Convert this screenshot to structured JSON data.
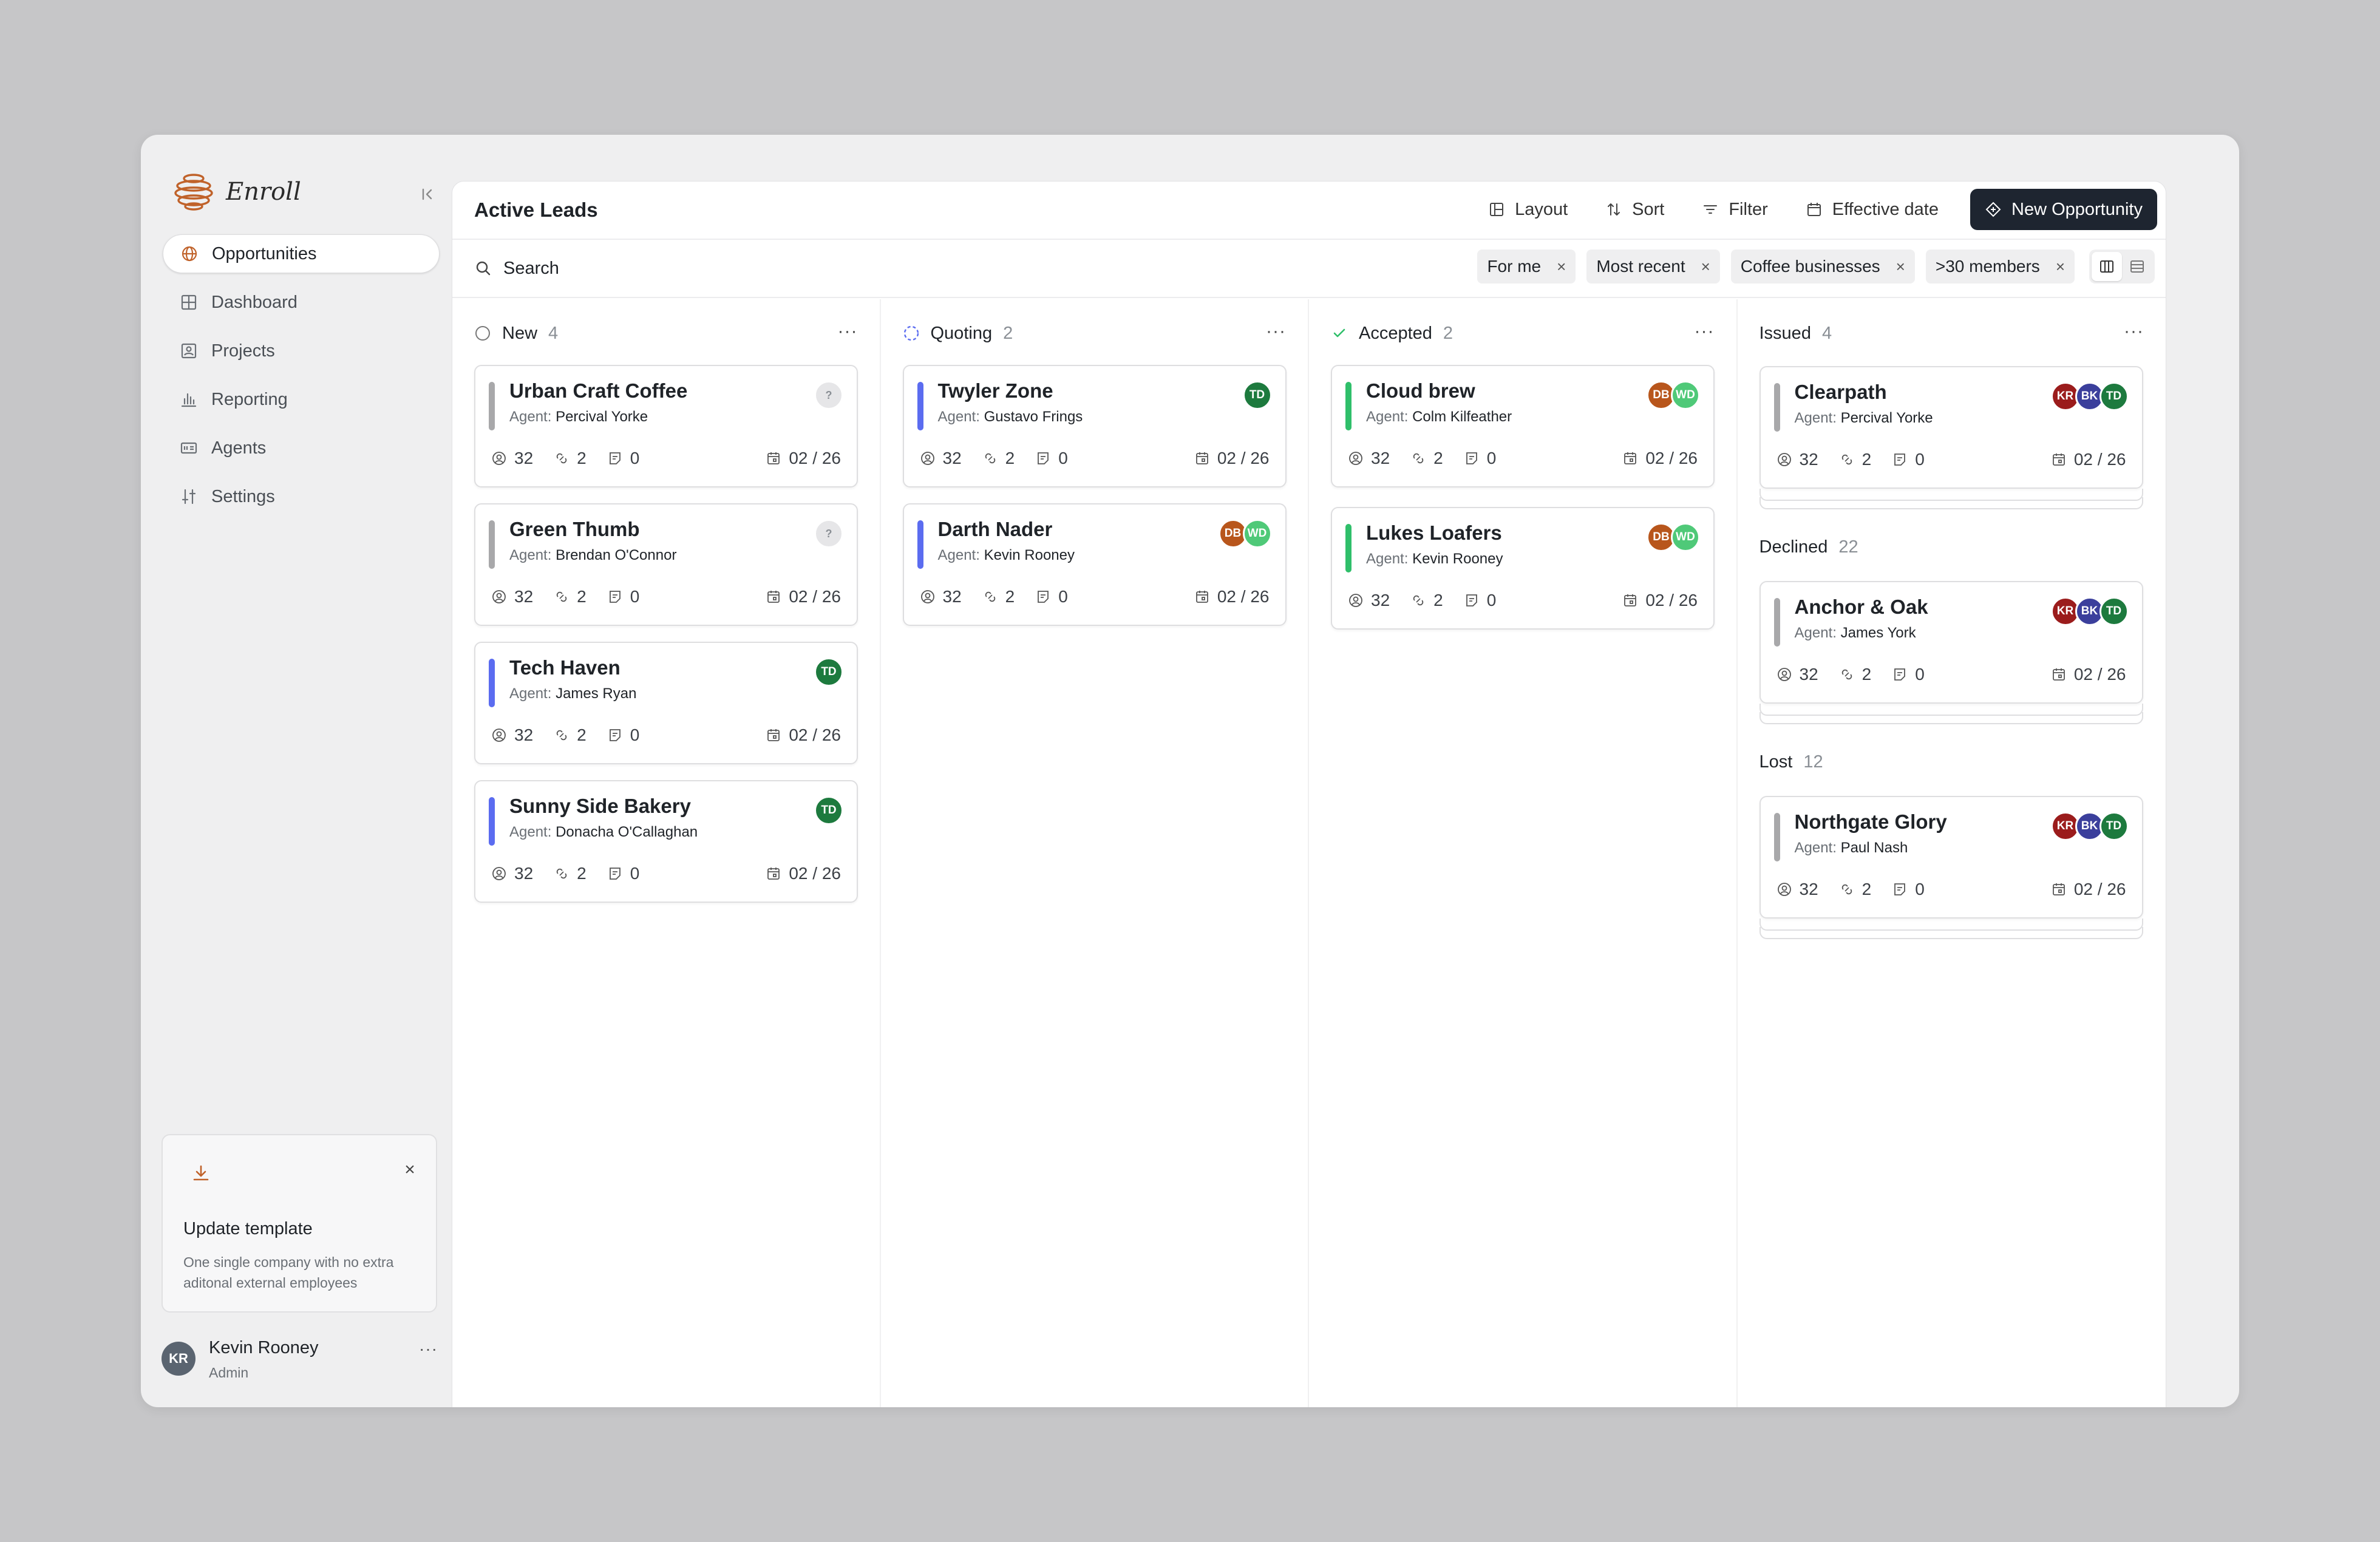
{
  "app": {
    "name": "Enroll"
  },
  "sidebar": {
    "items": [
      {
        "label": "Opportunities",
        "icon": "globe-icon"
      },
      {
        "label": "Dashboard",
        "icon": "grid-icon"
      },
      {
        "label": "Projects",
        "icon": "image-icon"
      },
      {
        "label": "Reporting",
        "icon": "bar-chart-icon"
      },
      {
        "label": "Agents",
        "icon": "id-card-icon"
      },
      {
        "label": "Settings",
        "icon": "sliders-icon"
      }
    ],
    "template": {
      "title": "Update template",
      "description": "One single company with no extra aditonal external employees"
    },
    "user": {
      "initials": "KR",
      "name": "Kevin Rooney",
      "role": "Admin"
    }
  },
  "header": {
    "title": "Active Leads",
    "layout": "Layout",
    "sort": "Sort",
    "filter": "Filter",
    "effective_date": "Effective date",
    "new_opportunity": "New Opportunity"
  },
  "search": {
    "placeholder": "Search"
  },
  "filters": [
    "For me",
    "Most recent",
    "Coffee businesses",
    ">30 members"
  ],
  "colors": {
    "blue": "#5b6cf0",
    "gray": "#a8a8aa",
    "green": "#2fbf6a",
    "dark": "#1e2530"
  },
  "columns": [
    {
      "title": "New",
      "count": "4"
    },
    {
      "title": "Quoting",
      "count": "2"
    },
    {
      "title": "Accepted",
      "count": "2"
    },
    {
      "title": "Issued",
      "count": "4"
    }
  ],
  "sub_sections": [
    {
      "title": "Declined",
      "count": "22"
    },
    {
      "title": "Lost",
      "count": "12"
    }
  ],
  "agent_prefix": "Agent:",
  "cards": {
    "c1": {
      "name": "Urban Craft Coffee",
      "agent": "Percival Yorke",
      "members": "32",
      "links": "2",
      "notes": "0",
      "date": "02 / 26"
    },
    "c2": {
      "name": "Green Thumb",
      "agent": "Brendan O'Connor",
      "members": "32",
      "links": "2",
      "notes": "0",
      "date": "02 / 26"
    },
    "c3": {
      "name": "Tech Haven",
      "agent": "James Ryan",
      "members": "32",
      "links": "2",
      "notes": "0",
      "date": "02 / 26"
    },
    "c4": {
      "name": "Sunny Side Bakery",
      "agent": "Donacha O'Callaghan",
      "members": "32",
      "links": "2",
      "notes": "0",
      "date": "02 / 26"
    },
    "c5": {
      "name": "Twyler Zone",
      "agent": "Gustavo Frings",
      "members": "32",
      "links": "2",
      "notes": "0",
      "date": "02 / 26"
    },
    "c6": {
      "name": "Darth Nader",
      "agent": "Kevin Rooney",
      "members": "32",
      "links": "2",
      "notes": "0",
      "date": "02 / 26"
    },
    "c7": {
      "name": "Cloud brew",
      "agent": "Colm Kilfeather",
      "members": "32",
      "links": "2",
      "notes": "0",
      "date": "02 / 26"
    },
    "c8": {
      "name": "Lukes Loafers",
      "agent": "Kevin Rooney",
      "members": "32",
      "links": "2",
      "notes": "0",
      "date": "02 / 26"
    },
    "c9": {
      "name": "Clearpath",
      "agent": "Percival Yorke",
      "members": "32",
      "links": "2",
      "notes": "0",
      "date": "02 / 26"
    },
    "c10": {
      "name": "Anchor & Oak",
      "agent": "James York",
      "members": "32",
      "links": "2",
      "notes": "0",
      "date": "02 / 26"
    },
    "c11": {
      "name": "Northgate Glory",
      "agent": "Paul Nash",
      "members": "32",
      "links": "2",
      "notes": "0",
      "date": "02 / 26"
    }
  },
  "avatars": {
    "unknown": "?",
    "td": "TD",
    "db": "DB",
    "wd": "WD",
    "kr": "KR",
    "bk": "BK"
  }
}
